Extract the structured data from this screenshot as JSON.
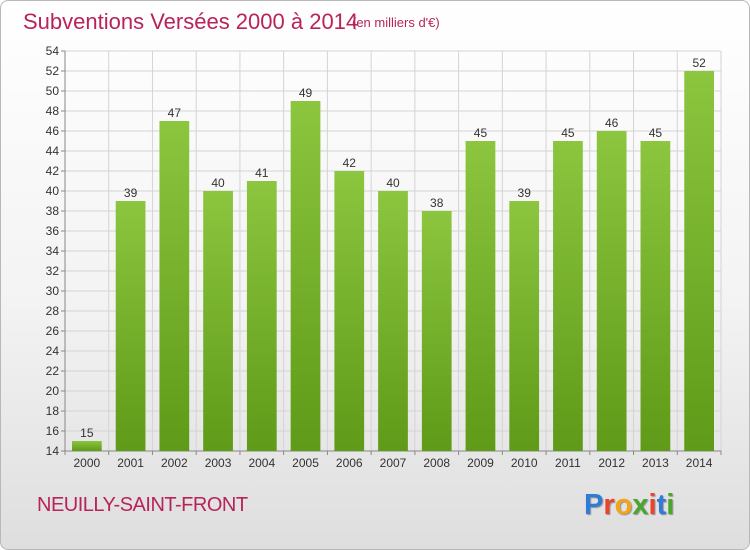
{
  "header": {
    "title": "Subventions Versées 2000 à 2014",
    "subtitle": "(en milliers d'€)"
  },
  "footer": {
    "commune": "NEUILLY-SAINT-FRONT",
    "logo_text": "Proxiti",
    "logo_colors": [
      "#2f7bd5",
      "#e8442e",
      "#f2a51a",
      "#4aa52f",
      "#e8442e",
      "#2f7bd5",
      "#4aa52f"
    ]
  },
  "chart_data": {
    "type": "bar",
    "categories": [
      "2000",
      "2001",
      "2002",
      "2003",
      "2004",
      "2005",
      "2006",
      "2007",
      "2008",
      "2009",
      "2010",
      "2011",
      "2012",
      "2013",
      "2014"
    ],
    "values": [
      15,
      39,
      47,
      40,
      41,
      49,
      42,
      40,
      38,
      45,
      39,
      45,
      46,
      45,
      52
    ],
    "ylim": [
      14,
      54
    ],
    "ytick_step": 2,
    "grid": true,
    "bar_color": "#8cc63f",
    "bar_color_dark": "#5f9a18"
  }
}
